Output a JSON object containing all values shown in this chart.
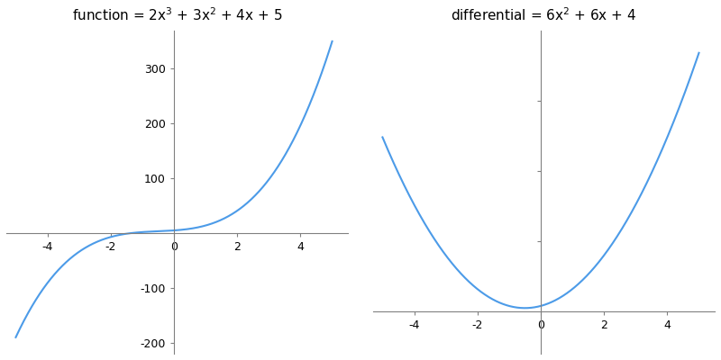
{
  "title1": "function = 2x$^3$ + 3x$^2$ + 4x + 5",
  "title2": "differential = 6x$^2$ + 6x + 4",
  "x_min": -5,
  "x_max": 5,
  "curve_color": "#4C9BE8",
  "spine_color": "#808080",
  "background_color": "#ffffff",
  "func_ylim": [
    -220,
    370
  ],
  "diff_ylim": [
    -30,
    200
  ],
  "xlim": [
    -5.3,
    5.5
  ],
  "x_ticks": [
    -4,
    -2,
    0,
    2,
    4
  ],
  "func_y_ticks": [
    -200,
    -100,
    100,
    200,
    300
  ],
  "linewidth": 1.5,
  "title_fontsize": 11,
  "tick_labelsize": 9
}
